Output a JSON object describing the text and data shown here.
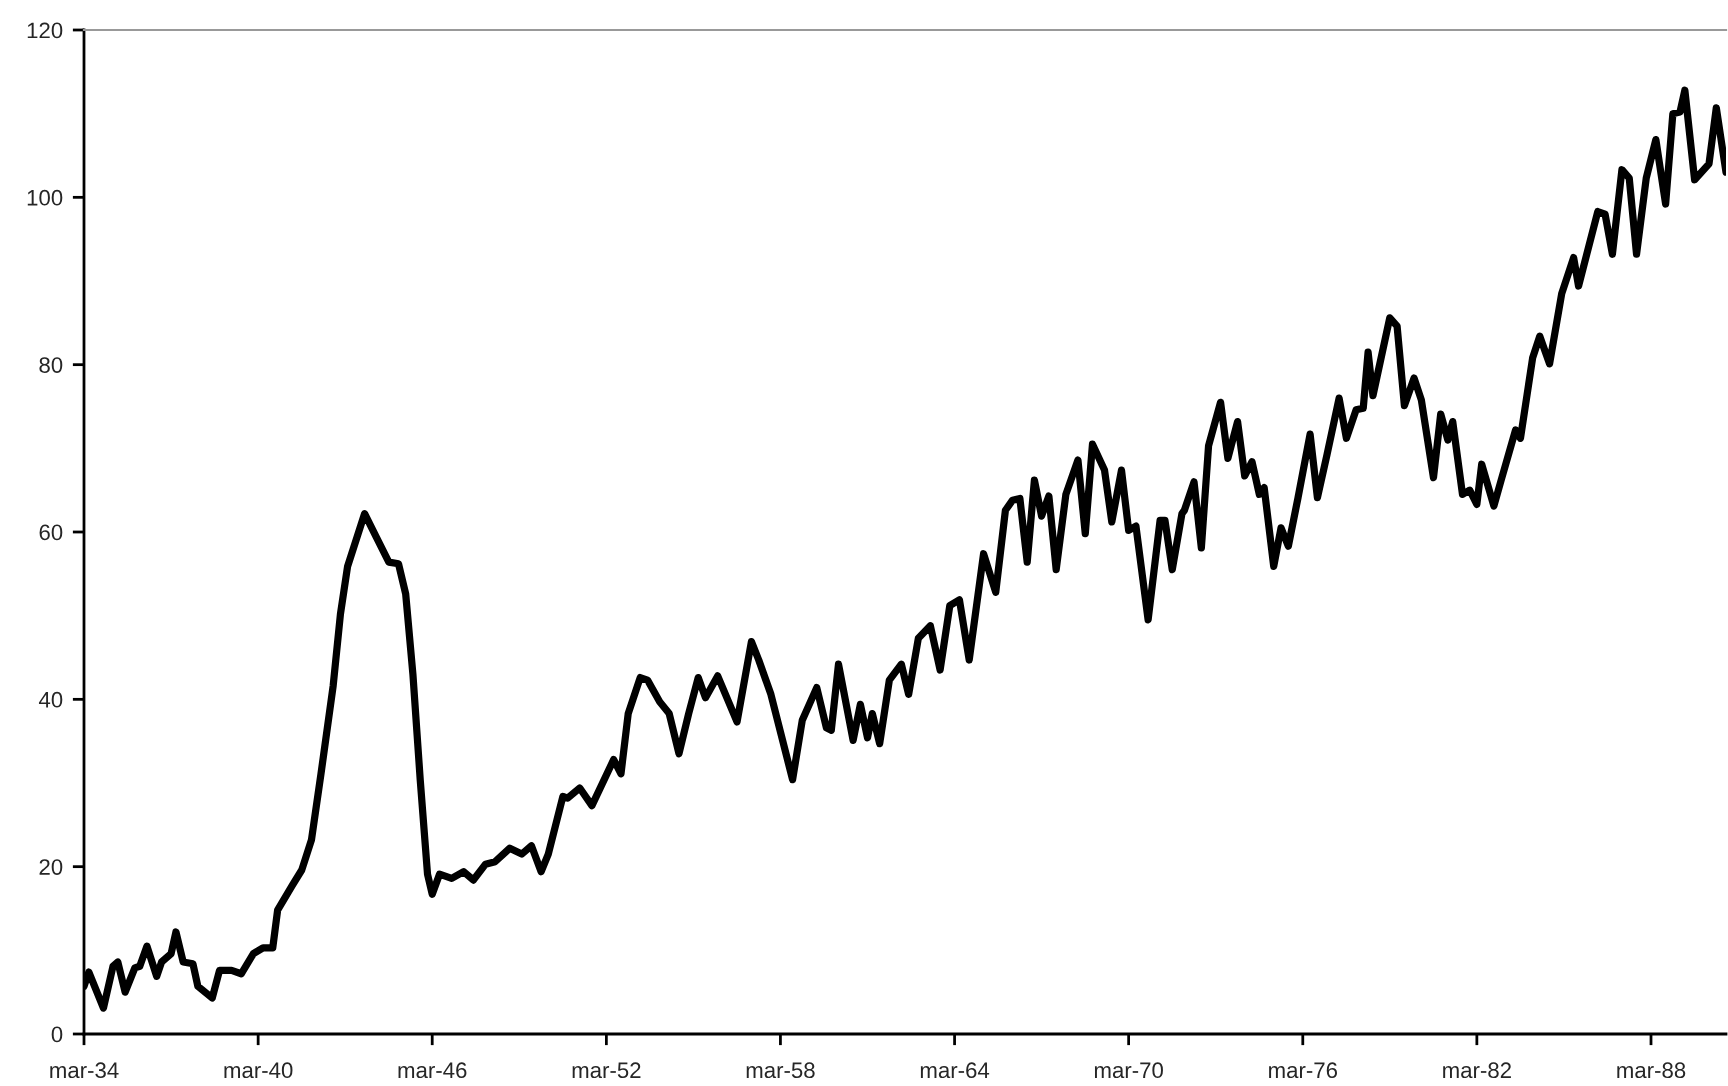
{
  "chart_data": {
    "type": "line",
    "x": [
      "1934-03",
      "1934-05",
      "1934-11",
      "1935-03",
      "1935-05",
      "1935-08",
      "1935-12",
      "1936-02",
      "1936-05",
      "1936-09",
      "1936-11",
      "1937-03",
      "1937-05",
      "1937-08",
      "1937-12",
      "1938-02",
      "1938-08",
      "1938-11",
      "1939-04",
      "1939-08",
      "1940-01",
      "1940-05",
      "1940-09",
      "1940-11",
      "1941-05",
      "1941-09",
      "1942-01",
      "1942-05",
      "1942-10",
      "1943-01",
      "1943-04",
      "1943-11",
      "1944-04",
      "1944-09",
      "1945-01",
      "1945-04",
      "1945-07",
      "1945-10",
      "1946-01",
      "1946-03",
      "1946-06",
      "1946-11",
      "1947-04",
      "1947-08",
      "1948-01",
      "1948-05",
      "1948-11",
      "1949-04",
      "1949-08",
      "1949-12",
      "1950-03",
      "1950-09",
      "1950-11",
      "1951-04",
      "1951-09",
      "1952-06",
      "1952-09",
      "1952-12",
      "1953-05",
      "1953-08",
      "1954-01",
      "1954-05",
      "1954-09",
      "1955-01",
      "1955-05",
      "1955-08",
      "1956-01",
      "1956-09",
      "1957-03",
      "1957-06",
      "1957-11",
      "1958-08",
      "1958-12",
      "1959-06",
      "1959-10",
      "1959-12",
      "1960-03",
      "1960-09",
      "1960-12",
      "1961-03",
      "1961-05",
      "1961-08",
      "1961-12",
      "1962-05",
      "1962-08",
      "1962-12",
      "1963-05",
      "1963-09",
      "1964-01",
      "1964-05",
      "1964-09",
      "1965-03",
      "1965-08",
      "1965-12",
      "1966-03",
      "1966-06",
      "1966-09",
      "1966-12",
      "1967-03",
      "1967-06",
      "1967-09",
      "1968-01",
      "1968-06",
      "1968-09",
      "1968-12",
      "1969-05",
      "1969-08",
      "1969-12",
      "1970-03",
      "1970-06",
      "1970-11",
      "1971-04",
      "1971-06",
      "1971-09",
      "1972-01",
      "1972-02",
      "1972-06",
      "1972-09",
      "1972-12",
      "1973-05",
      "1973-08",
      "1973-12",
      "1974-03",
      "1974-06",
      "1974-09",
      "1974-11",
      "1975-03",
      "1975-06",
      "1975-09",
      "1976-01",
      "1976-06",
      "1976-09",
      "1977-01",
      "1977-06",
      "1977-09",
      "1978-01",
      "1978-04",
      "1978-06",
      "1978-08",
      "1979-03",
      "1979-06",
      "1979-09",
      "1980-01",
      "1980-04",
      "1980-09",
      "1980-12",
      "1981-03",
      "1981-05",
      "1981-09",
      "1981-12",
      "1982-03",
      "1982-05",
      "1982-10",
      "1983-01",
      "1983-07",
      "1983-09",
      "1984-02",
      "1984-05",
      "1984-09",
      "1985-02",
      "1985-07",
      "1985-09",
      "1986-05",
      "1986-08",
      "1986-11",
      "1987-03",
      "1987-06",
      "1987-09",
      "1988-01",
      "1988-05",
      "1988-09",
      "1988-12",
      "1989-03",
      "1989-05",
      "1989-09",
      "1990-03",
      "1990-06",
      "1990-10"
    ],
    "series": [
      {
        "color": "#000000",
        "values": [
          5.7,
          7.4,
          3.1,
          8.1,
          8.6,
          5.0,
          7.9,
          8.1,
          10.5,
          6.9,
          8.6,
          9.6,
          12.2,
          8.6,
          8.4,
          5.7,
          4.3,
          7.6,
          7.6,
          7.2,
          9.6,
          10.3,
          10.3,
          14.8,
          17.7,
          19.6,
          23.2,
          31.1,
          41.6,
          50.2,
          55.9,
          62.2,
          59.3,
          56.4,
          56.2,
          52.6,
          43.0,
          30.4,
          19.1,
          16.7,
          19.1,
          18.6,
          19.4,
          18.4,
          20.3,
          20.6,
          22.2,
          21.5,
          22.5,
          19.4,
          21.5,
          28.4,
          28.2,
          29.4,
          27.3,
          32.8,
          31.1,
          38.3,
          42.6,
          42.3,
          39.7,
          38.3,
          33.5,
          38.3,
          42.6,
          40.2,
          42.8,
          37.3,
          46.9,
          44.7,
          40.6,
          30.4,
          37.5,
          41.4,
          36.6,
          36.3,
          44.2,
          35.1,
          39.4,
          35.4,
          38.3,
          34.7,
          42.3,
          44.2,
          40.6,
          47.3,
          48.8,
          43.5,
          51.2,
          51.9,
          44.7,
          57.4,
          52.8,
          62.6,
          63.8,
          64.0,
          56.4,
          66.2,
          61.9,
          64.3,
          55.5,
          64.5,
          68.6,
          59.8,
          70.5,
          67.4,
          61.2,
          67.4,
          60.2,
          60.7,
          49.5,
          61.4,
          61.4,
          55.5,
          62.2,
          62.6,
          66.0,
          58.1,
          70.3,
          75.5,
          68.8,
          73.2,
          66.7,
          68.4,
          64.5,
          65.3,
          55.9,
          60.5,
          58.3,
          64.1,
          71.7,
          64.1,
          69.3,
          76.0,
          71.2,
          74.6,
          74.8,
          81.5,
          76.3,
          85.6,
          84.6,
          75.1,
          78.4,
          75.8,
          66.5,
          74.1,
          71.0,
          73.2,
          64.5,
          65.0,
          63.3,
          68.1,
          63.1,
          66.2,
          72.2,
          71.2,
          80.8,
          83.4,
          80.1,
          88.5,
          92.8,
          89.4,
          98.3,
          98.0,
          93.2,
          103.3,
          102.3,
          93.2,
          102.3,
          106.9,
          99.2,
          110.0,
          110.2,
          112.8,
          102.1,
          104.0,
          110.7,
          103.0
        ]
      }
    ],
    "xlim": [
      "1934-03",
      "1990-10"
    ],
    "xticks": [
      {
        "value": "1934-03",
        "label": "mar-34"
      },
      {
        "value": "1940-03",
        "label": "mar-40"
      },
      {
        "value": "1946-03",
        "label": "mar-46"
      },
      {
        "value": "1952-03",
        "label": "mar-52"
      },
      {
        "value": "1958-03",
        "label": "mar-58"
      },
      {
        "value": "1964-03",
        "label": "mar-64"
      },
      {
        "value": "1970-03",
        "label": "mar-70"
      },
      {
        "value": "1976-03",
        "label": "mar-76"
      },
      {
        "value": "1982-03",
        "label": "mar-82"
      },
      {
        "value": "1988-03",
        "label": "mar-88"
      }
    ],
    "ylim": [
      0,
      120
    ],
    "yticks": [
      0,
      20,
      40,
      60,
      80,
      100,
      120
    ],
    "grid": false,
    "legend": false,
    "marker": "none",
    "line_style": "solid"
  }
}
